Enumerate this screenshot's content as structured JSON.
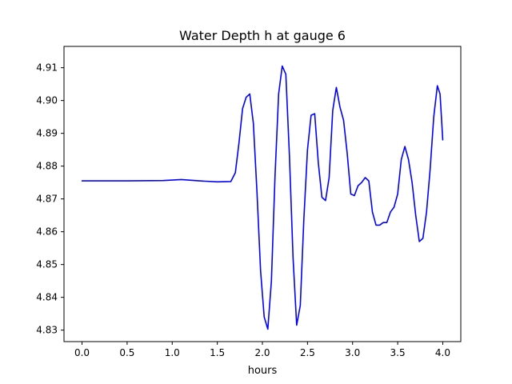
{
  "chart_data": {
    "type": "line",
    "title": "Water Depth h at gauge 6",
    "xlabel": "hours",
    "ylabel": "",
    "xlim": [
      -0.2,
      4.2
    ],
    "ylim": [
      4.8265,
      4.9165
    ],
    "grid": false,
    "legend": "none",
    "x_ticks": [
      0.0,
      0.5,
      1.0,
      1.5,
      2.0,
      2.5,
      3.0,
      3.5,
      4.0
    ],
    "x_tick_labels": [
      "0.0",
      "0.5",
      "1.0",
      "1.5",
      "2.0",
      "2.5",
      "3.0",
      "3.5",
      "4.0"
    ],
    "y_ticks": [
      4.83,
      4.84,
      4.85,
      4.86,
      4.87,
      4.88,
      4.89,
      4.9,
      4.91
    ],
    "y_tick_labels": [
      "4.83",
      "4.84",
      "4.85",
      "4.86",
      "4.87",
      "4.88",
      "4.89",
      "4.90",
      "4.91"
    ],
    "series": [
      {
        "color": "#0000ff",
        "x": [
          0.0,
          0.5,
          0.9,
          1.1,
          1.3,
          1.5,
          1.65,
          1.7,
          1.74,
          1.78,
          1.82,
          1.86,
          1.9,
          1.94,
          1.98,
          2.02,
          2.06,
          2.1,
          2.14,
          2.18,
          2.22,
          2.26,
          2.3,
          2.34,
          2.38,
          2.42,
          2.46,
          2.5,
          2.54,
          2.58,
          2.62,
          2.66,
          2.7,
          2.74,
          2.78,
          2.82,
          2.86,
          2.9,
          2.94,
          2.98,
          3.02,
          3.06,
          3.1,
          3.14,
          3.18,
          3.22,
          3.26,
          3.3,
          3.34,
          3.38,
          3.42,
          3.46,
          3.5,
          3.54,
          3.58,
          3.62,
          3.66,
          3.7,
          3.74,
          3.78,
          3.82,
          3.86,
          3.9,
          3.94,
          3.97,
          4.0
        ],
        "y": [
          4.8755,
          4.8755,
          4.8756,
          4.8759,
          4.8755,
          4.8752,
          4.8753,
          4.878,
          4.887,
          4.8975,
          4.901,
          4.902,
          4.893,
          4.872,
          4.848,
          4.834,
          4.8303,
          4.845,
          4.877,
          4.902,
          4.9105,
          4.908,
          4.883,
          4.852,
          4.8315,
          4.8375,
          4.864,
          4.885,
          4.8955,
          4.896,
          4.881,
          4.8705,
          4.8695,
          4.8765,
          4.897,
          4.904,
          4.898,
          4.894,
          4.884,
          4.8715,
          4.871,
          4.874,
          4.875,
          4.8765,
          4.8755,
          4.866,
          4.862,
          4.862,
          4.8628,
          4.8628,
          4.866,
          4.8675,
          4.8715,
          4.882,
          4.886,
          4.882,
          4.875,
          4.865,
          4.857,
          4.858,
          4.866,
          4.879,
          4.895,
          4.9045,
          4.902,
          4.888
        ]
      }
    ]
  }
}
